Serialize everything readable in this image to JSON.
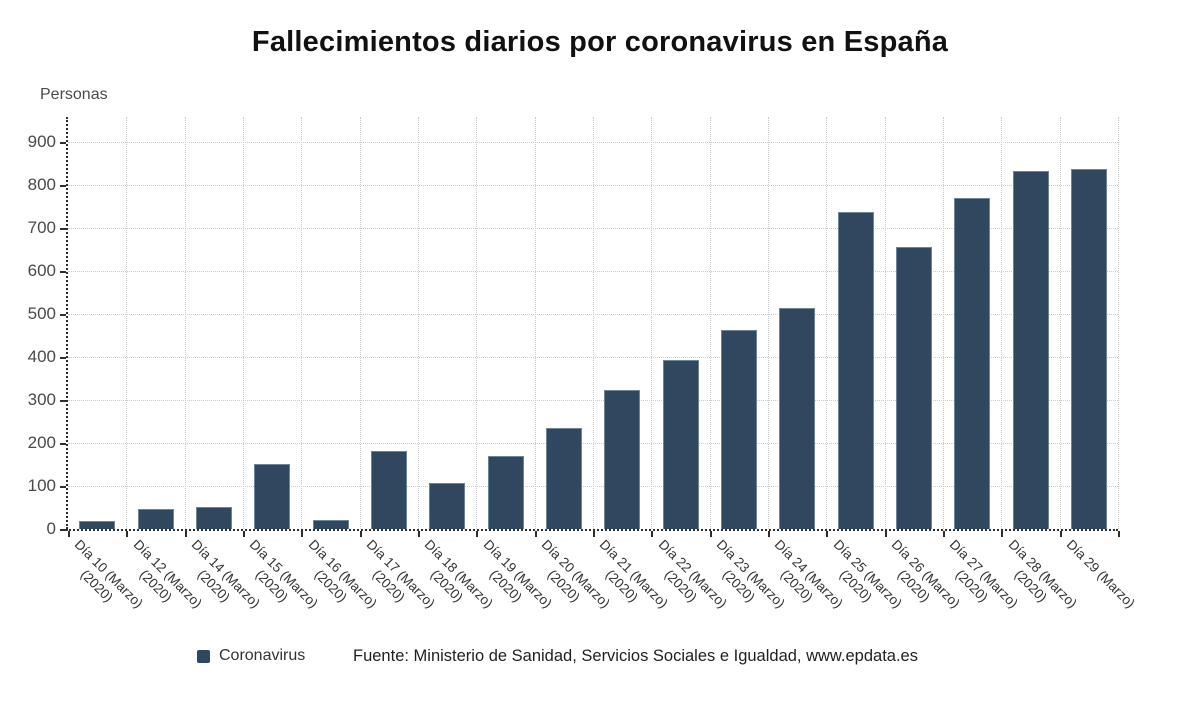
{
  "title": "Fallecimientos diarios por coronavirus en España",
  "y_axis_title": "Personas",
  "legend": {
    "label": "Coronavirus"
  },
  "source": "Fuente: Ministerio de Sanidad, Servicios Sociales e Igualdad, www.epdata.es",
  "colors": {
    "bar": "#2f4860",
    "bar_border": "#6d8499",
    "grid": "#cbcbcb",
    "axis": "#2e2e2e",
    "tick_label": "#4a4a4a",
    "x_label": "#333333",
    "title": "#111111"
  },
  "chart_data": {
    "type": "bar",
    "title": "Fallecimientos diarios por coronavirus en España",
    "xlabel": "",
    "ylabel": "Personas",
    "series": [
      {
        "name": "Coronavirus",
        "values": [
          18,
          47,
          51,
          152,
          21,
          182,
          107,
          169,
          235,
          324,
          394,
          462,
          514,
          738,
          655,
          769,
          832,
          838
        ]
      }
    ],
    "categories": [
      {
        "day": "Día 10 (Marzo)",
        "year": "(2020)"
      },
      {
        "day": "Día 12 (Marzo)",
        "year": "(2020)"
      },
      {
        "day": "Día 14 (Marzo)",
        "year": "(2020)"
      },
      {
        "day": "Día 15 (Marzo)",
        "year": "(2020)"
      },
      {
        "day": "Día 16 (Marzo)",
        "year": "(2020)"
      },
      {
        "day": "Día 17 (Marzo)",
        "year": "(2020)"
      },
      {
        "day": "Día 18 (Marzo)",
        "year": "(2020)"
      },
      {
        "day": "Día 19 (Marzo)",
        "year": "(2020)"
      },
      {
        "day": "Día 20 (Marzo)",
        "year": "(2020)"
      },
      {
        "day": "Día 21 (Marzo)",
        "year": "(2020)"
      },
      {
        "day": "Día 22 (Marzo)",
        "year": "(2020)"
      },
      {
        "day": "Día 23 (Marzo)",
        "year": "(2020)"
      },
      {
        "day": "Día 24 (Marzo)",
        "year": "(2020)"
      },
      {
        "day": "Día 25 (Marzo)",
        "year": "(2020)"
      },
      {
        "day": "Día 26 (Marzo)",
        "year": "(2020)"
      },
      {
        "day": "Día 27 (Marzo)",
        "year": "(2020)"
      },
      {
        "day": "Día 28 (Marzo)",
        "year": "(2020)"
      },
      {
        "day": "Día 29 (Marzo)",
        "year": ""
      }
    ],
    "ylim": [
      0,
      900
    ],
    "ytick_interval": 100,
    "yticks": [
      0,
      100,
      200,
      300,
      400,
      500,
      600,
      700,
      800,
      900
    ],
    "grid": true,
    "grid_style": "dotted",
    "legend_position": "bottom-left",
    "x_label_rotation_deg": 45
  }
}
